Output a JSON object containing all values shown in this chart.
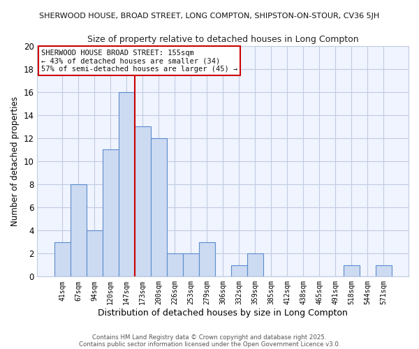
{
  "title_top": "SHERWOOD HOUSE, BROAD STREET, LONG COMPTON, SHIPSTON-ON-STOUR, CV36 5JH",
  "title_sub": "Size of property relative to detached houses in Long Compton",
  "xlabel": "Distribution of detached houses by size in Long Compton",
  "ylabel": "Number of detached properties",
  "bar_labels": [
    "41sqm",
    "67sqm",
    "94sqm",
    "120sqm",
    "147sqm",
    "173sqm",
    "200sqm",
    "226sqm",
    "253sqm",
    "279sqm",
    "306sqm",
    "332sqm",
    "359sqm",
    "385sqm",
    "412sqm",
    "438sqm",
    "465sqm",
    "491sqm",
    "518sqm",
    "544sqm",
    "571sqm"
  ],
  "bar_values": [
    3,
    8,
    4,
    11,
    16,
    13,
    12,
    2,
    2,
    3,
    0,
    1,
    2,
    0,
    0,
    0,
    0,
    0,
    1,
    0,
    1
  ],
  "bar_color": "#ccdaf2",
  "bar_edge_color": "#5b8ccc",
  "vline_x": 4.5,
  "vline_color": "#cc0000",
  "ylim": [
    0,
    20
  ],
  "yticks": [
    0,
    2,
    4,
    6,
    8,
    10,
    12,
    14,
    16,
    18,
    20
  ],
  "annotation_text": "SHERWOOD HOUSE BROAD STREET: 155sqm\n← 43% of detached houses are smaller (34)\n57% of semi-detached houses are larger (45) →",
  "annotation_box_color": "#ffffff",
  "annotation_box_edge": "#cc0000",
  "footer1": "Contains HM Land Registry data © Crown copyright and database right 2025.",
  "footer2": "Contains public sector information licensed under the Open Government Licence v3.0.",
  "bg_color": "#ffffff",
  "plot_bg_color": "#f0f4ff",
  "grid_color": "#c0cce0"
}
